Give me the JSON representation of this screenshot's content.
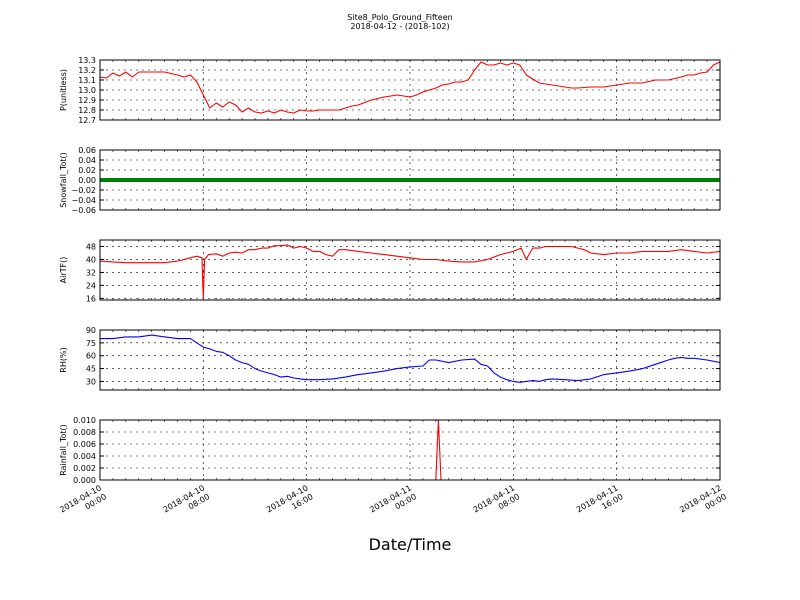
{
  "chart_data": {
    "type": "line",
    "title": "Site8_Polo_Ground_Fifteen",
    "subtitle": "2018-04-12 - (2018-102)",
    "xlabel": "Date/Time",
    "x_ticks": [
      {
        "line1": "2018-04-10",
        "line2": "00:00"
      },
      {
        "line1": "2018-04-10",
        "line2": "08:00"
      },
      {
        "line1": "2018-04-10",
        "line2": "16:00"
      },
      {
        "line1": "2018-04-11",
        "line2": "00:00"
      },
      {
        "line1": "2018-04-11",
        "line2": "08:00"
      },
      {
        "line1": "2018-04-11",
        "line2": "16:00"
      },
      {
        "line1": "2018-04-12",
        "line2": "00:00"
      }
    ],
    "xlim_hours": [
      0,
      48
    ],
    "grid": true,
    "panels": [
      {
        "ylabel": "P(unitless)",
        "color": "#ff0000",
        "ylim": [
          12.7,
          13.3
        ],
        "yticks": [
          "12.7",
          "12.8",
          "12.9",
          "13.0",
          "13.1",
          "13.2",
          "13.3"
        ],
        "x": [
          0,
          0.5,
          1,
          1.5,
          2,
          2.5,
          3,
          3.5,
          4,
          5,
          6,
          6.5,
          7,
          7.5,
          8,
          8.5,
          9,
          9.5,
          10,
          10.5,
          11,
          11.5,
          12,
          12.5,
          13,
          13.5,
          14,
          14.5,
          15,
          15.5,
          16,
          16.5,
          17,
          17.5,
          18,
          18.5,
          19,
          19.5,
          20,
          21,
          22,
          23,
          24,
          24.5,
          25,
          25.5,
          26,
          26.5,
          27,
          27.5,
          28,
          28.5,
          29,
          29.5,
          30,
          30.5,
          31,
          31.5,
          32,
          32.5,
          33,
          34,
          35,
          36,
          36.5,
          37,
          38,
          39,
          40,
          41,
          42,
          43,
          44,
          45,
          45.5,
          46,
          46.5,
          47,
          47.5,
          48
        ],
        "y": [
          13.13,
          13.12,
          13.17,
          13.14,
          13.18,
          13.13,
          13.18,
          13.18,
          13.18,
          13.18,
          13.15,
          13.13,
          13.15,
          13.08,
          12.95,
          12.82,
          12.87,
          12.83,
          12.88,
          12.85,
          12.78,
          12.82,
          12.78,
          12.77,
          12.79,
          12.77,
          12.8,
          12.78,
          12.77,
          12.8,
          12.79,
          12.79,
          12.8,
          12.8,
          12.8,
          12.8,
          12.82,
          12.84,
          12.85,
          12.9,
          12.93,
          12.95,
          12.93,
          12.95,
          12.98,
          13.0,
          13.02,
          13.05,
          13.06,
          13.08,
          13.08,
          13.1,
          13.2,
          13.28,
          13.25,
          13.25,
          13.27,
          13.25,
          13.27,
          13.25,
          13.15,
          13.07,
          13.05,
          13.03,
          13.02,
          13.02,
          13.03,
          13.03,
          13.05,
          13.07,
          13.07,
          13.1,
          13.1,
          13.13,
          13.15,
          13.15,
          13.17,
          13.18,
          13.25,
          13.28
        ]
      },
      {
        "ylabel": "Snowfall_Tot()",
        "color": "#008000",
        "ylim": [
          -0.06,
          0.06
        ],
        "yticks": [
          "−0.06",
          "−0.04",
          "−0.02",
          "0.00",
          "0.02",
          "0.04",
          "0.06"
        ],
        "x": [
          0,
          48
        ],
        "y": [
          0,
          0
        ]
      },
      {
        "ylabel": "AirTF()",
        "color": "#ff0000",
        "ylim": [
          15,
          52
        ],
        "yticks": [
          "16",
          "24",
          "32",
          "40",
          "48"
        ],
        "x": [
          0,
          1,
          2,
          3,
          4,
          5,
          6,
          7,
          7.5,
          7.9,
          8.0,
          8.1,
          8.4,
          9,
          9.5,
          10,
          10.5,
          11,
          11.5,
          12,
          12.5,
          13,
          13.5,
          14,
          14.5,
          15,
          15.5,
          16,
          16.5,
          17,
          17.5,
          18,
          18.5,
          19,
          20,
          21,
          22,
          23,
          24,
          25,
          26,
          27,
          28,
          29,
          30,
          31,
          31.5,
          32,
          32.3,
          32.6,
          33,
          33.5,
          34,
          34.5,
          35,
          35.5,
          36,
          36.5,
          37,
          37.5,
          38,
          39,
          40,
          41,
          42,
          43,
          44,
          45,
          46,
          47,
          48
        ],
        "y": [
          39,
          38.5,
          38,
          38,
          38,
          38,
          39,
          41,
          42,
          41,
          16,
          40,
          43,
          43.5,
          42,
          44,
          44.5,
          44,
          46,
          46,
          47,
          47,
          48.5,
          48.5,
          49,
          47,
          48,
          47,
          45,
          45,
          43,
          42,
          46,
          46,
          45,
          44,
          43,
          42,
          41,
          40,
          40,
          39,
          38.5,
          38.5,
          40,
          43,
          44,
          45,
          46,
          47,
          40,
          47,
          47,
          48,
          48,
          48,
          48,
          48,
          47,
          46,
          44,
          43,
          44,
          44,
          45,
          45,
          45,
          46,
          45,
          44,
          45
        ]
      },
      {
        "ylabel": "RH(%)",
        "color": "#0000ff",
        "ylim": [
          20,
          90
        ],
        "yticks": [
          "30",
          "45",
          "60",
          "75",
          "90"
        ],
        "x": [
          0,
          1,
          2,
          3,
          4,
          5,
          6,
          7,
          7.5,
          8,
          8.5,
          9,
          9.5,
          10,
          10.5,
          11,
          11.5,
          12,
          12.5,
          13,
          13.5,
          14,
          14.5,
          15,
          15.5,
          16,
          17,
          18,
          19,
          20,
          21,
          22,
          23,
          24,
          25,
          25.5,
          26,
          27,
          28,
          29,
          29.5,
          30,
          30.5,
          31,
          31.5,
          32,
          32.5,
          33,
          33.5,
          34,
          34.5,
          35,
          36,
          37,
          38,
          39,
          40,
          41,
          42,
          43,
          44,
          44.5,
          45,
          45.5,
          46,
          47,
          48
        ],
        "y": [
          80,
          80,
          82,
          82,
          84,
          82,
          80,
          80,
          75,
          70,
          68,
          65,
          64,
          60,
          55,
          52,
          50,
          45,
          42,
          40,
          38,
          35,
          36,
          34,
          33,
          32,
          32,
          33,
          35,
          38,
          40,
          42,
          45,
          47,
          48,
          55,
          55,
          52,
          55,
          56,
          50,
          48,
          40,
          35,
          32,
          30,
          29,
          30,
          31,
          30,
          32,
          33,
          32,
          31,
          33,
          38,
          40,
          42,
          45,
          50,
          55,
          57,
          58,
          57,
          57,
          55,
          52
        ]
      },
      {
        "ylabel": "Rainfall_Tot()",
        "color": "#ff0000",
        "ylim": [
          0,
          0.01
        ],
        "yticks": [
          "0.000",
          "0.002",
          "0.004",
          "0.006",
          "0.008",
          "0.010"
        ],
        "x": [
          0,
          26,
          26.2,
          26.4,
          48
        ],
        "y": [
          0,
          0,
          0.01,
          0,
          0
        ]
      }
    ]
  }
}
